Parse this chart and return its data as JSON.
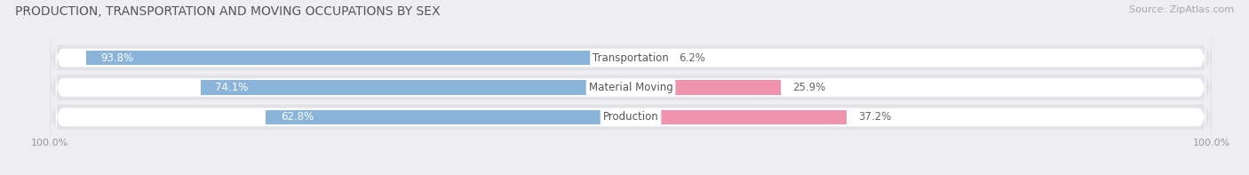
{
  "title": "PRODUCTION, TRANSPORTATION AND MOVING OCCUPATIONS BY SEX",
  "source_text": "Source: ZipAtlas.com",
  "categories": [
    "Transportation",
    "Material Moving",
    "Production"
  ],
  "male_values": [
    93.8,
    74.1,
    62.8
  ],
  "female_values": [
    6.2,
    25.9,
    37.2
  ],
  "male_color": "#8ab4d9",
  "female_color": "#f093ae",
  "label_color_male": "#ffffff",
  "label_color_female": "#666666",
  "cat_label_color": "#555555",
  "title_fontsize": 10.0,
  "source_fontsize": 8.0,
  "bar_label_fontsize": 8.5,
  "cat_label_fontsize": 8.5,
  "axis_label_fontsize": 8.0,
  "legend_fontsize": 8.5,
  "background_color": "#ededf2",
  "row_bg_color": "#e2e2e8",
  "bar_bg_color": "#ffffff",
  "xlim_left": -100,
  "xlim_right": 100,
  "axis_tick_labels": [
    "100.0%",
    "100.0%"
  ]
}
